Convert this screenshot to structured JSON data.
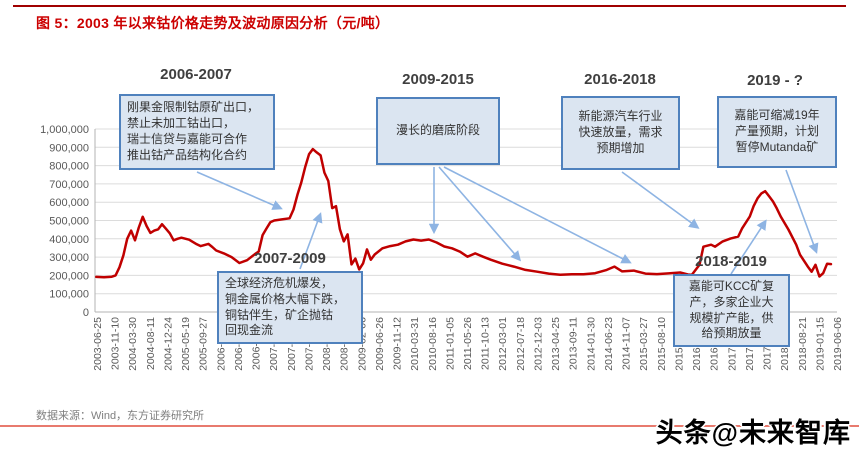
{
  "figure": {
    "title": "图 5：2003 年以来钴价格走势及波动原因分析（元/吨）",
    "source": "数据来源：Wind，东方证券研究所",
    "watermark": "头条@未来智库"
  },
  "colors": {
    "line": "#c00000",
    "box_fill": "#dbe5f1",
    "box_border": "#4f81bd",
    "arrow": "#8eb4e3",
    "grid": "#dcdcdc",
    "axis": "#b3b3b3",
    "title": "#cc0000",
    "bottom_divider": "#e87a6e"
  },
  "annotations": [
    {
      "period": "2006-2007",
      "text": "刚果金限制钴原矿出口，\n禁止未加工钴出口，\n瑞士信贷与嘉能可合作\n推出钴产品结构化合约"
    },
    {
      "period": "2009-2015",
      "text": "漫长的磨底阶段"
    },
    {
      "period": "2016-2018",
      "text": "新能源汽车行业\n快速放量，需求\n预期增加"
    },
    {
      "period": "2019 - ?",
      "text": "嘉能可缩减19年\n产量预期，计划\n暂停Mutanda矿"
    },
    {
      "period": "2007-2009",
      "text": "全球经济危机爆发，\n铜金属价格大幅下跌，\n铜钴伴生，矿企抛钴\n回现金流"
    },
    {
      "period": "2018-2019",
      "text": "嘉能可KCC矿复\n产，多家企业大\n规模扩产能，供\n给预期放量"
    }
  ],
  "chart_data": {
    "type": "line",
    "title": "图 5：2003 年以来钴价格走势及波动原因分析（元/吨）",
    "xlabel": "",
    "ylabel": "",
    "ylim": [
      0,
      1000000
    ],
    "grid": true,
    "legend": "none",
    "y_tick_labels": [
      "1,000,000",
      "900,000",
      "800,000",
      "700,000",
      "600,000",
      "500,000",
      "400,000",
      "300,000",
      "200,000",
      "100,000",
      "0"
    ],
    "x_tick_labels": [
      "2003-06-25",
      "2003-11-10",
      "2004-03-30",
      "2004-08-11",
      "2004-12-24",
      "2005-05-19",
      "2005-09-27",
      "2006-02-09",
      "2006-06-27",
      "2006-11-09",
      "2007-03-26",
      "2007-08-08",
      "2007-12-21",
      "2008-05-07",
      "2008-09-19",
      "2009-02-06",
      "2009-06-26",
      "2009-11-12",
      "2010-03-31",
      "2010-08-16",
      "2011-01-05",
      "2011-05-26",
      "2011-10-13",
      "2012-03-01",
      "2012-07-18",
      "2012-12-03",
      "2013-04-25",
      "2013-09-11",
      "2014-01-30",
      "2014-06-23",
      "2014-11-07",
      "2015-03-27",
      "2015-08-10",
      "2015-12-28",
      "2016-05-16",
      "2016-09-29",
      "2017-02-15",
      "2017-07-04",
      "2017-11-16",
      "2018-04-04",
      "2018-08-21",
      "2019-01-15",
      "2019-06-06"
    ],
    "series": [
      {
        "name": "钴价格（元/吨）",
        "color": "#c00000",
        "points": [
          [
            "2003-06",
            192000
          ],
          [
            "2003-08",
            190000
          ],
          [
            "2003-10",
            193000
          ],
          [
            "2003-11",
            200000
          ],
          [
            "2003-12",
            245000
          ],
          [
            "2004-01",
            310000
          ],
          [
            "2004-02",
            400000
          ],
          [
            "2004-03",
            445000
          ],
          [
            "2004-04",
            392000
          ],
          [
            "2004-05",
            462000
          ],
          [
            "2004-06",
            520000
          ],
          [
            "2004-07",
            470000
          ],
          [
            "2004-08",
            432000
          ],
          [
            "2004-09",
            445000
          ],
          [
            "2004-10",
            452000
          ],
          [
            "2004-11",
            480000
          ],
          [
            "2004-12",
            455000
          ],
          [
            "2005-01",
            430000
          ],
          [
            "2005-02",
            392000
          ],
          [
            "2005-03",
            400000
          ],
          [
            "2005-04",
            406000
          ],
          [
            "2005-06",
            395000
          ],
          [
            "2005-08",
            370000
          ],
          [
            "2005-09",
            360000
          ],
          [
            "2005-11",
            372000
          ],
          [
            "2005-12",
            355000
          ],
          [
            "2006-01",
            336000
          ],
          [
            "2006-03",
            320000
          ],
          [
            "2006-05",
            300000
          ],
          [
            "2006-07",
            268000
          ],
          [
            "2006-09",
            283000
          ],
          [
            "2006-11",
            316000
          ],
          [
            "2006-12",
            330000
          ],
          [
            "2007-01",
            420000
          ],
          [
            "2007-02",
            456000
          ],
          [
            "2007-03",
            490000
          ],
          [
            "2007-04",
            500000
          ],
          [
            "2007-06",
            506000
          ],
          [
            "2007-08",
            512000
          ],
          [
            "2007-09",
            560000
          ],
          [
            "2007-10",
            640000
          ],
          [
            "2007-11",
            706000
          ],
          [
            "2007-12",
            790000
          ],
          [
            "2008-01",
            862000
          ],
          [
            "2008-02",
            890000
          ],
          [
            "2008-03",
            872000
          ],
          [
            "2008-04",
            856000
          ],
          [
            "2008-05",
            762000
          ],
          [
            "2008-06",
            716000
          ],
          [
            "2008-07",
            568000
          ],
          [
            "2008-08",
            578000
          ],
          [
            "2008-09",
            452000
          ],
          [
            "2008-10",
            386000
          ],
          [
            "2008-11",
            424000
          ],
          [
            "2008-12",
            260000
          ],
          [
            "2009-01",
            292000
          ],
          [
            "2009-02",
            232000
          ],
          [
            "2009-03",
            266000
          ],
          [
            "2009-04",
            342000
          ],
          [
            "2009-05",
            286000
          ],
          [
            "2009-06",
            314000
          ],
          [
            "2009-08",
            348000
          ],
          [
            "2009-10",
            360000
          ],
          [
            "2009-12",
            368000
          ],
          [
            "2010-02",
            386000
          ],
          [
            "2010-04",
            396000
          ],
          [
            "2010-06",
            390000
          ],
          [
            "2010-08",
            396000
          ],
          [
            "2010-10",
            380000
          ],
          [
            "2010-12",
            358000
          ],
          [
            "2011-02",
            348000
          ],
          [
            "2011-04",
            330000
          ],
          [
            "2011-06",
            302000
          ],
          [
            "2011-08",
            320000
          ],
          [
            "2011-10",
            302000
          ],
          [
            "2011-12",
            286000
          ],
          [
            "2012-03",
            264000
          ],
          [
            "2012-06",
            248000
          ],
          [
            "2012-09",
            230000
          ],
          [
            "2012-12",
            220000
          ],
          [
            "2013-03",
            210000
          ],
          [
            "2013-06",
            204000
          ],
          [
            "2013-09",
            206000
          ],
          [
            "2013-12",
            206000
          ],
          [
            "2014-03",
            212000
          ],
          [
            "2014-06",
            230000
          ],
          [
            "2014-08",
            248000
          ],
          [
            "2014-10",
            222000
          ],
          [
            "2015-01",
            226000
          ],
          [
            "2015-04",
            210000
          ],
          [
            "2015-07",
            207000
          ],
          [
            "2015-10",
            211000
          ],
          [
            "2016-01",
            216000
          ],
          [
            "2016-03",
            205000
          ],
          [
            "2016-04",
            203000
          ],
          [
            "2016-06",
            258000
          ],
          [
            "2016-07",
            357000
          ],
          [
            "2016-09",
            368000
          ],
          [
            "2016-10",
            357000
          ],
          [
            "2016-12",
            386000
          ],
          [
            "2017-02",
            401000
          ],
          [
            "2017-04",
            412000
          ],
          [
            "2017-05",
            456000
          ],
          [
            "2017-07",
            522000
          ],
          [
            "2017-08",
            578000
          ],
          [
            "2017-09",
            621000
          ],
          [
            "2017-10",
            648000
          ],
          [
            "2017-11",
            660000
          ],
          [
            "2017-12",
            632000
          ],
          [
            "2018-01",
            604000
          ],
          [
            "2018-02",
            566000
          ],
          [
            "2018-03",
            522000
          ],
          [
            "2018-05",
            451000
          ],
          [
            "2018-07",
            368000
          ],
          [
            "2018-08",
            313000
          ],
          [
            "2018-10",
            248000
          ],
          [
            "2018-11",
            220000
          ],
          [
            "2018-12",
            258000
          ],
          [
            "2019-01",
            194000
          ],
          [
            "2019-02",
            212000
          ],
          [
            "2019-03",
            264000
          ],
          [
            "2019-04",
            262000
          ]
        ]
      }
    ]
  }
}
